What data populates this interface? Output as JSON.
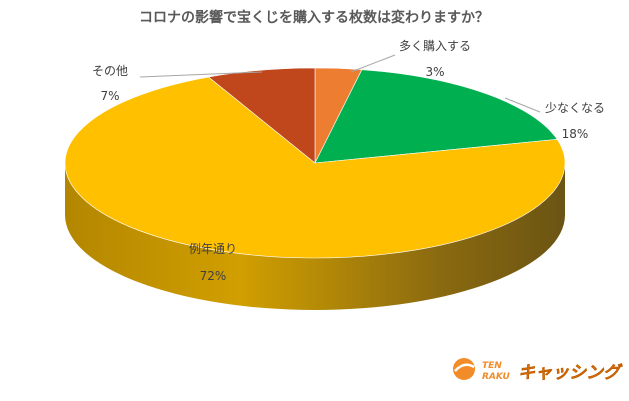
{
  "chart_data": {
    "type": "pie",
    "title": "コロナの影響で宝くじを購入する枚数は変わりますか？",
    "slices": [
      {
        "label": "多く購入する",
        "value": 3,
        "display": "3%",
        "color": "#ED7D31"
      },
      {
        "label": "少なくなる",
        "value": 18,
        "display": "18%",
        "color": "#00B050"
      },
      {
        "label": "例年通り",
        "value": 72,
        "display": "72%",
        "color": "#FFC000"
      },
      {
        "label": "その他",
        "value": 7,
        "display": "7%",
        "color": "#C0461C"
      }
    ],
    "three_d": true,
    "legend": "none"
  },
  "logo": {
    "line1": "TEN",
    "line2": "RAKU",
    "brand": "キャッシング"
  }
}
